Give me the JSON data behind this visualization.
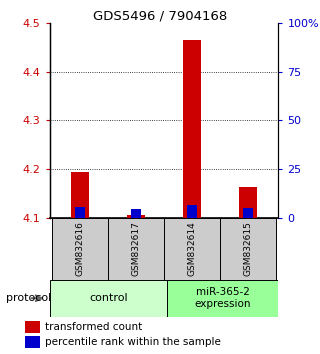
{
  "title": "GDS5496 / 7904168",
  "samples": [
    "GSM832616",
    "GSM832617",
    "GSM832614",
    "GSM832615"
  ],
  "red_values": [
    4.193,
    4.105,
    4.465,
    4.163
  ],
  "blue_values": [
    4.122,
    4.118,
    4.127,
    4.12
  ],
  "baseline": 4.1,
  "ylim": [
    4.1,
    4.5
  ],
  "yticks_left": [
    4.1,
    4.2,
    4.3,
    4.4,
    4.5
  ],
  "yticks_right": [
    0,
    25,
    50,
    75,
    100
  ],
  "left_color": "#cc0000",
  "right_color": "#0000cc",
  "bar_width": 0.32,
  "blue_bar_width": 0.18,
  "red_bar_color": "#cc0000",
  "blue_bar_color": "#0000cc",
  "control_bg": "#ccffcc",
  "mir_bg": "#99ff99",
  "sample_box_color": "#cccccc",
  "protocol_label": "protocol"
}
